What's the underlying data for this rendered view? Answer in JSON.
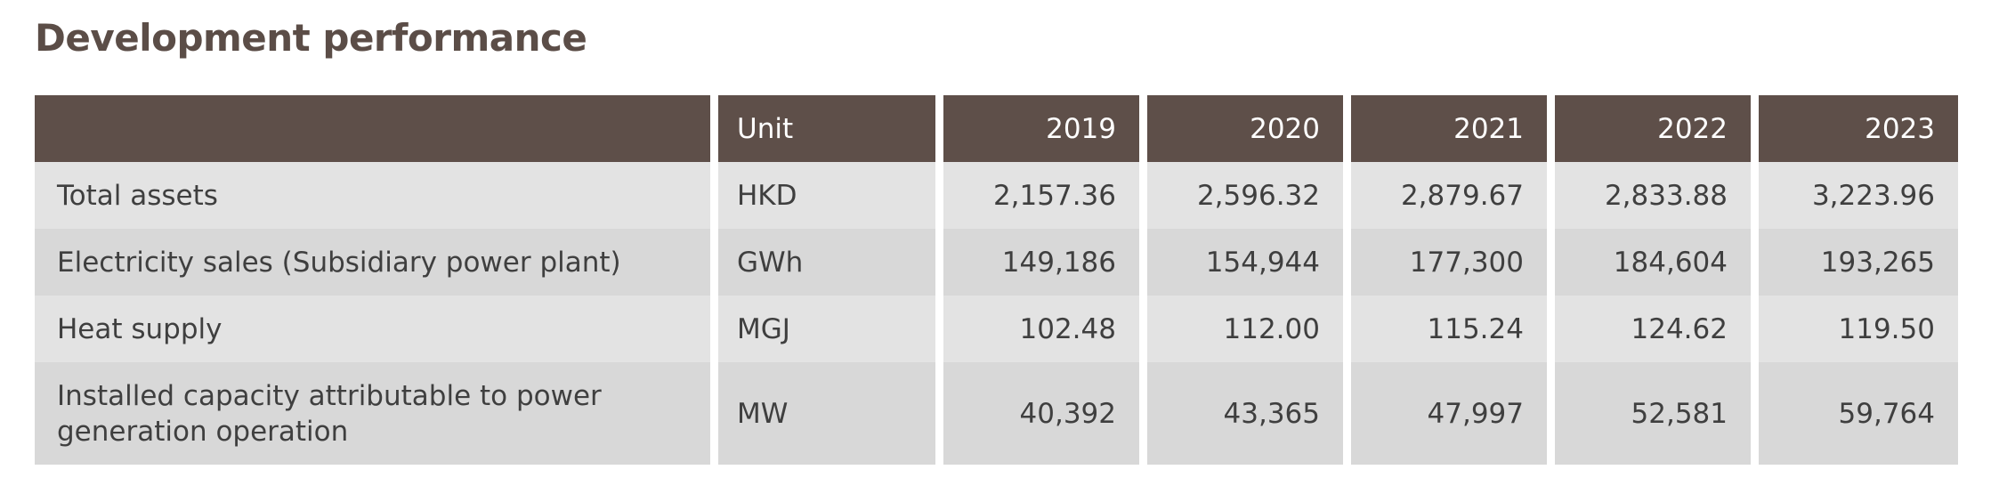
{
  "page": {
    "title": "Development performance"
  },
  "table": {
    "header": {
      "item": "",
      "unit": "Unit",
      "years": [
        "2019",
        "2020",
        "2021",
        "2022",
        "2023"
      ]
    },
    "rows": [
      {
        "label": "Total assets",
        "unit": "HKD",
        "values": [
          "2,157.36",
          "2,596.32",
          "2,879.67",
          "2,833.88",
          "3,223.96"
        ]
      },
      {
        "label": "Electricity sales (Subsidiary power plant)",
        "unit": "GWh",
        "values": [
          "149,186",
          "154,944",
          "177,300",
          "184,604",
          "193,265"
        ]
      },
      {
        "label": "Heat supply",
        "unit": "MGJ",
        "values": [
          "102.48",
          "112.00",
          "115.24",
          "124.62",
          "119.50"
        ]
      },
      {
        "label": "Installed capacity attributable to power generation operation",
        "unit": "MW",
        "values": [
          "40,392",
          "43,365",
          "47,997",
          "52,581",
          "59,764"
        ]
      }
    ]
  },
  "colors": {
    "title": "#5b4d47",
    "header_bg": "#5e4f49",
    "header_text": "#ffffff",
    "row_light": "#e3e3e3",
    "row_dark": "#d8d8d8",
    "body_text": "#3f3f3f"
  }
}
